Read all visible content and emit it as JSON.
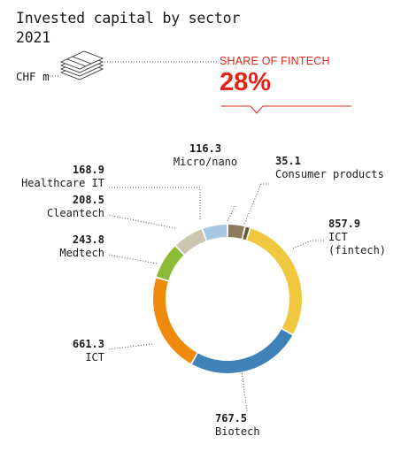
{
  "header": {
    "title_line1": "Invested capital by sector",
    "title_line2": "2021",
    "unit": "CHF m",
    "share_label": "SHARE OF FINTECH",
    "share_value": "28%"
  },
  "icons": {
    "unit_icon": "money-stack-icon"
  },
  "colors": {
    "accent": "#e2231a"
  },
  "chart_data": {
    "type": "pie",
    "style": "donut",
    "unit": "CHF m",
    "start": "top",
    "direction": "clockwise",
    "slices": [
      {
        "label": "Micro/nano",
        "value": 116.3,
        "color": "#8c7a5a"
      },
      {
        "label": "Consumer products",
        "value": 35.1,
        "color": "#6e5838"
      },
      {
        "label": "ICT\n(fintech)",
        "value": 857.9,
        "color": "#f0c840"
      },
      {
        "label": "Biotech",
        "value": 767.5,
        "color": "#3f82b8"
      },
      {
        "label": "ICT",
        "value": 661.3,
        "color": "#ef8a0c"
      },
      {
        "label": "Medtech",
        "value": 243.8,
        "color": "#8dbb36"
      },
      {
        "label": "Cleantech",
        "value": 208.5,
        "color": "#ccc6b0"
      },
      {
        "label": "Healthcare IT",
        "value": 168.9,
        "color": "#a6c8e4"
      }
    ]
  }
}
